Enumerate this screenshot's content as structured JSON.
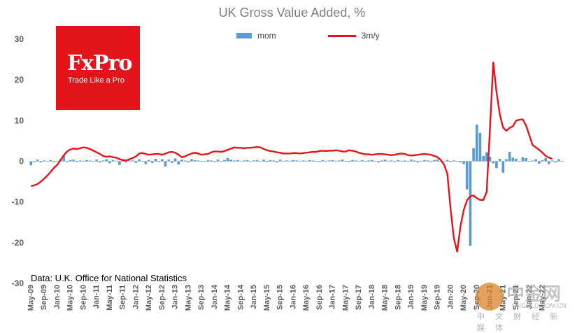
{
  "chart_data": {
    "type": "bar",
    "title": "UK Gross Value Added, %",
    "xlabel": "",
    "ylabel": "",
    "ylim": [
      -30,
      30
    ],
    "yticks": [
      30,
      20,
      10,
      0,
      -10,
      -20,
      -30
    ],
    "grid": false,
    "legend_position": "top",
    "x_tick_labels": [
      "May-09",
      "Sep-09",
      "Jan-10",
      "May-10",
      "Sep-10",
      "Jan-11",
      "May-11",
      "Sep-11",
      "Jan-12",
      "May-12",
      "Sep-12",
      "Jan-13",
      "May-13",
      "Sep-13",
      "Jan-14",
      "May-14",
      "Sep-14",
      "Jan-15",
      "May-15",
      "Sep-15",
      "Jan-16",
      "May-16",
      "Sep-16",
      "Jan-17",
      "May-17",
      "Sep-17",
      "Jan-18",
      "May-18",
      "Sep-18",
      "Jan-19",
      "May-19",
      "Sep-19",
      "Jan-20",
      "May-20",
      "Sep-20",
      "Jan-21",
      "May-21",
      "Sep-21",
      "Jan-22",
      "May-22"
    ],
    "x_start": "May-09",
    "x_end": "Jun-22",
    "series": [
      {
        "name": "mom",
        "type": "bar",
        "color": "#5b9bd5",
        "values": [
          -1.0,
          -0.2,
          0.4,
          -0.3,
          0.2,
          0.1,
          0.3,
          -0.2,
          0.1,
          0.5,
          1.5,
          -0.2,
          0.3,
          0.4,
          -0.2,
          0.2,
          0.1,
          0.3,
          0.2,
          -0.1,
          0.4,
          -0.3,
          0.2,
          0.5,
          -0.5,
          0.3,
          0.1,
          -0.9,
          0.4,
          -0.3,
          0.2,
          0.2,
          -0.4,
          0.5,
          0.1,
          -0.7,
          0.3,
          -0.4,
          0.6,
          -0.2,
          0.5,
          -1.3,
          0.4,
          -0.4,
          0.7,
          -0.8,
          0.4,
          0.2,
          -0.3,
          0.5,
          0.3,
          0.2,
          -0.1,
          0.1,
          0.3,
          0.2,
          -0.2,
          0.4,
          0.1,
          0.3,
          0.8,
          0.4,
          0.2,
          0.3,
          0.1,
          0.2,
          0.3,
          -0.1,
          0.2,
          0.3,
          0.1,
          0.4,
          -0.2,
          0.3,
          0.2,
          -0.3,
          0.4,
          0.1,
          0.2,
          0.1,
          0.3,
          0.2,
          -0.1,
          0.2,
          0.1,
          0.3,
          0.2,
          0.1,
          -0.2,
          0.3,
          0.1,
          0.2,
          0.3,
          -0.1,
          0.2,
          0.4,
          0.1,
          -0.2,
          0.3,
          0.2,
          0.1,
          0.3,
          -0.1,
          0.2,
          0.3,
          0.1,
          -0.3,
          0.2,
          0.4,
          0.1,
          0.2,
          -0.2,
          0.3,
          0.1,
          0.2,
          -0.1,
          0.4,
          0.2,
          -0.3,
          0.1,
          0.3,
          0.2,
          -0.2,
          0.3,
          0.4,
          -0.1,
          0.1,
          0.3,
          -0.2,
          0.2,
          -0.1,
          -0.3,
          -0.7,
          -6.9,
          -20.8,
          3.2,
          9.0,
          7.0,
          1.3,
          2.2,
          1.1,
          -0.5,
          -1.7,
          0.6,
          -2.8,
          0.5,
          2.3,
          0.9,
          0.6,
          -0.1,
          1.0,
          0.8,
          0.1,
          0.2,
          0.5,
          -0.6,
          0.3,
          0.8,
          -0.7,
          0.2,
          -0.3,
          0.5,
          0.1
        ],
        "values_note_removed": true
      },
      {
        "name": "3m/y",
        "type": "line",
        "color": "#e3151a",
        "values": [
          -6.1,
          -5.9,
          -5.6,
          -5.0,
          -4.3,
          -3.5,
          -2.6,
          -1.6,
          -0.9,
          0.3,
          1.5,
          2.4,
          2.9,
          3.1,
          3.0,
          3.2,
          3.4,
          3.3,
          3.0,
          2.6,
          2.2,
          1.8,
          1.3,
          1.1,
          1.2,
          1.0,
          0.9,
          0.5,
          0.3,
          0.2,
          0.5,
          0.8,
          1.2,
          1.9,
          2.0,
          1.8,
          1.6,
          1.7,
          1.8,
          1.8,
          1.6,
          1.9,
          2.2,
          2.3,
          2.1,
          1.6,
          1.0,
          1.2,
          1.6,
          1.9,
          2.1,
          1.9,
          1.6,
          1.7,
          1.8,
          2.2,
          2.4,
          2.4,
          2.3,
          2.5,
          2.8,
          3.1,
          3.4,
          3.3,
          3.3,
          3.2,
          3.3,
          3.3,
          3.4,
          3.5,
          3.4,
          3.0,
          2.7,
          2.5,
          2.4,
          2.2,
          2.1,
          1.9,
          1.9,
          1.9,
          2.0,
          2.0,
          1.9,
          2.0,
          2.1,
          2.2,
          2.3,
          2.3,
          2.5,
          2.6,
          2.5,
          2.6,
          2.6,
          2.7,
          2.6,
          2.4,
          2.4,
          2.7,
          2.6,
          2.4,
          2.1,
          1.9,
          1.7,
          1.7,
          1.6,
          1.7,
          1.8,
          1.8,
          1.7,
          1.6,
          1.5,
          1.6,
          1.8,
          1.9,
          1.8,
          1.5,
          1.4,
          1.5,
          1.6,
          1.7,
          1.8,
          1.7,
          1.6,
          1.3,
          1.0,
          0.3,
          -0.8,
          -3.1,
          -11.8,
          -19.0,
          -22.2,
          -16.0,
          -12.0,
          -9.6,
          -8.6,
          -8.4,
          -9.1,
          -9.5,
          -9.5,
          -7.5,
          8.0,
          24.3,
          17.0,
          11.5,
          8.3,
          7.5,
          8.2,
          8.6,
          10.0,
          10.2,
          10.3,
          8.8,
          6.4,
          4.0,
          3.4,
          2.8,
          2.1,
          1.3,
          0.9,
          0.6
        ]
      }
    ]
  },
  "legend": {
    "mom": "mom",
    "three_m_y": "3m/y"
  },
  "logo": {
    "name": "FxPro",
    "tagline": "Trade Like a Pro",
    "color": "#e3151a"
  },
  "source": "Data: U.K. Office for National Statistics",
  "watermark": {
    "name": "中金网",
    "url": "CNGOLD.COM.CN",
    "caption": "中 文 财 经 新 媒 体"
  }
}
